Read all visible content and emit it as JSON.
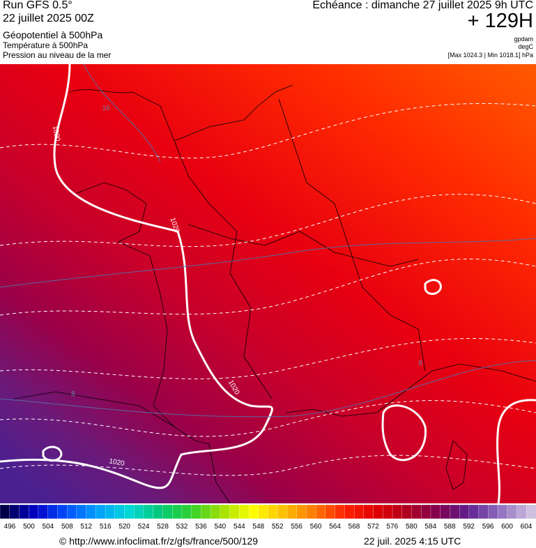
{
  "header": {
    "run": "Run GFS 0.5°",
    "date": "22 juillet 2025 00Z",
    "field1": "Géopotentiel à 500hPa",
    "field2": "Température à 500hPa",
    "field3": "Pression au niveau de la mer",
    "valid": "Echéance : dimanche 27 juillet 2025 9h UTC",
    "lead": "+ 129H",
    "unit1": "gpdam",
    "unit2": "degC",
    "range": "[Max 1024.3 | Min 1018.1] hPa"
  },
  "map": {
    "isobar_labels": [
      "1020",
      "1020",
      "1020",
      "1020"
    ],
    "isotherm_labels": [
      "16",
      "8",
      "8"
    ]
  },
  "colorbar": {
    "ticks": [
      496,
      500,
      504,
      508,
      512,
      516,
      520,
      524,
      528,
      532,
      536,
      540,
      544,
      548,
      552,
      556,
      560,
      564,
      568,
      572,
      576,
      580,
      584,
      588,
      592,
      596,
      600,
      604
    ],
    "stops": [
      "#00004a",
      "#0000c8",
      "#0050ff",
      "#00a0ff",
      "#00d8d8",
      "#00c878",
      "#30d030",
      "#a0e000",
      "#ffff00",
      "#ffc000",
      "#ff7800",
      "#ff2000",
      "#e00000",
      "#b00020",
      "#800050",
      "#602090",
      "#9070c0",
      "#d0c0e0"
    ]
  },
  "footer": {
    "url": "© http://www.infoclimat.fr/z/gfs/france/500/129",
    "timestamp": "22 juil. 2025  4:15 UTC"
  }
}
